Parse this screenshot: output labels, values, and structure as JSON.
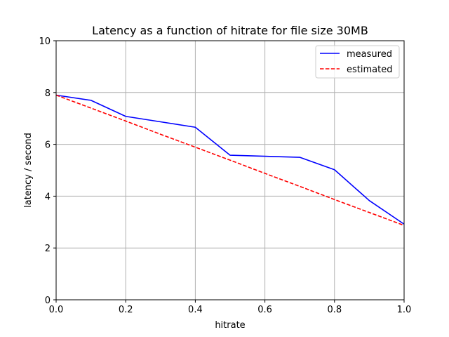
{
  "chart_data": {
    "type": "line",
    "title": "Latency as a function of hitrate for file size 30MB",
    "xlabel": "hitrate",
    "ylabel": "latency / second",
    "xlim": [
      0.0,
      1.0
    ],
    "ylim": [
      0,
      10
    ],
    "xticks": [
      0.0,
      0.2,
      0.4,
      0.6,
      0.8,
      1.0
    ],
    "xtick_labels": [
      "0.0",
      "0.2",
      "0.4",
      "0.6",
      "0.8",
      "1.0"
    ],
    "yticks": [
      0,
      2,
      4,
      6,
      8,
      10
    ],
    "ytick_labels": [
      "0",
      "2",
      "4",
      "6",
      "8",
      "10"
    ],
    "grid": true,
    "legend_position": "top-right",
    "series": [
      {
        "name": "measured",
        "color": "#0000ff",
        "style": "solid",
        "x": [
          0.0,
          0.1,
          0.2,
          0.3,
          0.4,
          0.5,
          0.6,
          0.7,
          0.8,
          0.9,
          1.0
        ],
        "y": [
          7.9,
          7.7,
          7.08,
          6.87,
          6.66,
          5.58,
          5.54,
          5.5,
          5.02,
          3.83,
          2.92
        ]
      },
      {
        "name": "estimated",
        "color": "#ff0000",
        "style": "dashed",
        "x": [
          0.0,
          0.1,
          0.2,
          0.3,
          0.4,
          0.5,
          0.6,
          0.7,
          0.8,
          0.9,
          1.0
        ],
        "y": [
          7.9,
          7.4,
          6.9,
          6.39,
          5.89,
          5.39,
          4.88,
          4.38,
          3.87,
          3.37,
          2.87
        ]
      }
    ]
  }
}
